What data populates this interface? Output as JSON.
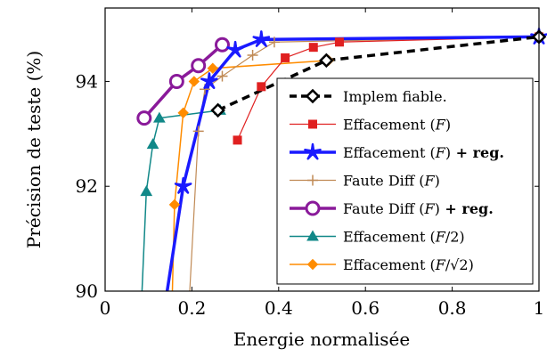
{
  "chart_data": {
    "type": "line",
    "xlabel": "Energie normalisée",
    "ylabel": "Précision de teste (%)",
    "xlim": [
      0,
      1
    ],
    "ylim": [
      90,
      95.4
    ],
    "xticks": [
      0,
      0.2,
      0.4,
      0.6,
      0.8,
      1
    ],
    "xtick_labels": [
      "0",
      "0.2",
      "0.4",
      "0.6",
      "0.8",
      "1"
    ],
    "yticks": [
      90,
      92,
      94
    ],
    "ytick_labels": [
      "90",
      "92",
      "94"
    ],
    "grid": false,
    "legend_position": "lower-right",
    "series": [
      {
        "name": "Implem fiable.",
        "name_parts": [
          {
            "text": "Implem fiable.",
            "bold": false
          }
        ],
        "color": "#000000",
        "dash": "dashed",
        "marker": "diamond",
        "width": 3.5,
        "points": [
          [
            0.26,
            93.45
          ],
          [
            0.51,
            94.4
          ],
          [
            1.0,
            94.85
          ]
        ]
      },
      {
        "name": "Effacement (F)",
        "name_parts": [
          {
            "text": "Effacement (",
            "bold": false
          },
          {
            "text": "F",
            "bold": false,
            "italic": true
          },
          {
            "text": ")",
            "bold": false
          }
        ],
        "color": "#e02020",
        "dash": "solid",
        "marker": "square",
        "width": 1.2,
        "points": [
          [
            0.305,
            92.88
          ],
          [
            0.36,
            93.9
          ],
          [
            0.415,
            94.45
          ],
          [
            0.48,
            94.65
          ],
          [
            0.54,
            94.75
          ],
          [
            1.0,
            94.85
          ]
        ]
      },
      {
        "name": "Effacement (F) + reg.",
        "name_parts": [
          {
            "text": "Effacement (",
            "bold": false
          },
          {
            "text": "F",
            "bold": false,
            "italic": true
          },
          {
            "text": ")",
            "bold": false
          },
          {
            "text": " + reg.",
            "bold": true
          }
        ],
        "color": "#1a1aff",
        "dash": "solid",
        "marker": "star",
        "width": 3.5,
        "points": [
          [
            0.143,
            90.0
          ],
          [
            0.18,
            92.0
          ],
          [
            0.24,
            94.0
          ],
          [
            0.3,
            94.6
          ],
          [
            0.36,
            94.8
          ],
          [
            1.0,
            94.85
          ]
        ]
      },
      {
        "name": "Faute Diff (F)",
        "name_parts": [
          {
            "text": "Faute Diff (",
            "bold": false
          },
          {
            "text": "F",
            "bold": false,
            "italic": true
          },
          {
            "text": ")",
            "bold": false
          }
        ],
        "color": "#c08a55",
        "dash": "solid",
        "marker": "plus",
        "width": 1.2,
        "points": [
          [
            0.195,
            90.0
          ],
          [
            0.215,
            93.05
          ],
          [
            0.23,
            93.85
          ],
          [
            0.27,
            94.1
          ],
          [
            0.34,
            94.5
          ],
          [
            0.39,
            94.75
          ],
          [
            1.0,
            94.85
          ]
        ]
      },
      {
        "name": "Faute Diff (F) + reg.",
        "name_parts": [
          {
            "text": "Faute Diff (",
            "bold": false
          },
          {
            "text": "F",
            "bold": false,
            "italic": true
          },
          {
            "text": ")",
            "bold": false
          },
          {
            "text": " + reg.",
            "bold": true
          }
        ],
        "color": "#8a1a9a",
        "dash": "solid",
        "marker": "circle",
        "width": 3.5,
        "points": [
          [
            0.09,
            93.3
          ],
          [
            0.165,
            94.0
          ],
          [
            0.215,
            94.3
          ],
          [
            0.27,
            94.7
          ]
        ]
      },
      {
        "name": "Effacement (F/2)",
        "name_parts": [
          {
            "text": "Effacement (",
            "bold": false
          },
          {
            "text": "F",
            "bold": false,
            "italic": true
          },
          {
            "text": "/2)",
            "bold": false
          }
        ],
        "color": "#118888",
        "dash": "solid",
        "marker": "triangle",
        "width": 1.5,
        "points": [
          [
            0.085,
            90.0
          ],
          [
            0.095,
            91.9
          ],
          [
            0.11,
            92.8
          ],
          [
            0.125,
            93.3
          ],
          [
            0.265,
            93.45
          ]
        ]
      },
      {
        "name": "Effacement (F/√2)",
        "name_parts": [
          {
            "text": "Effacement (",
            "bold": false
          },
          {
            "text": "F",
            "bold": false,
            "italic": true
          },
          {
            "text": "/√2)",
            "bold": false
          }
        ],
        "color": "#ff8c00",
        "dash": "solid",
        "marker": "diamond-filled",
        "width": 1.5,
        "points": [
          [
            0.155,
            90.0
          ],
          [
            0.16,
            91.65
          ],
          [
            0.18,
            93.4
          ],
          [
            0.205,
            94.0
          ],
          [
            0.248,
            94.25
          ],
          [
            0.515,
            94.4
          ]
        ]
      }
    ]
  }
}
